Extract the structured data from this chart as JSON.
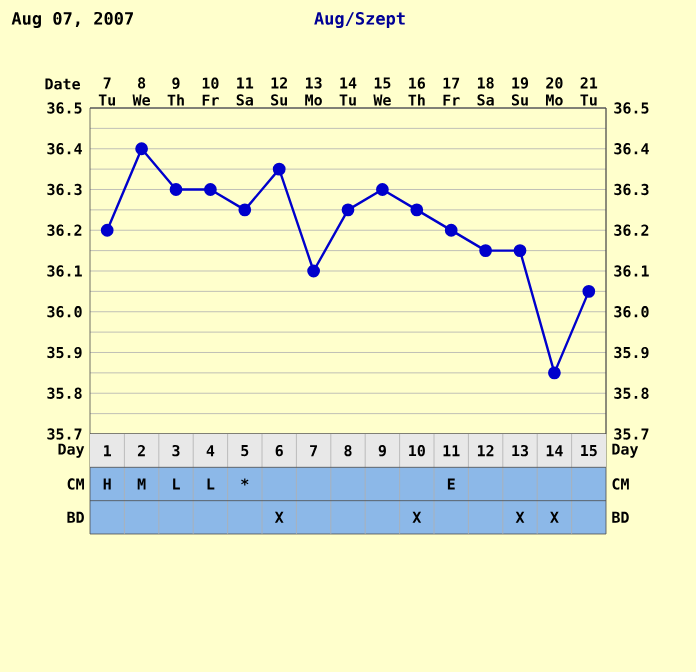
{
  "chart_data": [
    {
      "type": "line",
      "title": "Aug/Szept",
      "annotations": [
        "Aug 07, 2007"
      ],
      "categories": [
        "7 Tu",
        "8 We",
        "9 Th",
        "10 Fr",
        "11 Sa",
        "12 Su",
        "13 Mo",
        "14 Tu",
        "15 We",
        "16 Th",
        "17 Fr",
        "18 Sa",
        "19 Su",
        "20 Mo",
        "21 Tu"
      ],
      "xlabel": "Date",
      "values": [
        36.2,
        36.4,
        36.3,
        36.3,
        36.25,
        36.35,
        36.1,
        36.25,
        36.3,
        36.25,
        36.2,
        36.15,
        36.15,
        35.85,
        36.05
      ],
      "color": "#0000cc",
      "marker": "circle",
      "grid": true,
      "ylim": [
        35.7,
        36.5
      ],
      "yticks": [
        35.7,
        35.8,
        35.9,
        {
          "value": 36.0,
          "label": "36.0"
        },
        36.1,
        36.2,
        36.3,
        36.4,
        36.5
      ],
      "y2lim": [
        35.7,
        36.5
      ],
      "y2ticks": [
        35.7,
        35.8,
        35.9,
        {
          "value": 36.0,
          "label": "36.0"
        },
        36.1,
        36.2,
        36.3,
        36.4,
        36.5
      ]
    },
    {
      "type": "heatmap",
      "categories": [
        "1",
        "2",
        "3",
        "4",
        "5",
        "6",
        "7",
        "8",
        "9",
        "10",
        "11",
        "12",
        "13",
        "14",
        "15"
      ],
      "xlabel": "Day",
      "y_categories": [
        "CM",
        "BD"
      ],
      "y2_categories": [
        "CM",
        "BD"
      ],
      "cells": [
        [
          null,
          null,
          null,
          null,
          null,
          null,
          null,
          null,
          null,
          null,
          null,
          null,
          null,
          null,
          null
        ],
        [
          null,
          null,
          null,
          null,
          null,
          null,
          null,
          null,
          null,
          null,
          null,
          null,
          null,
          null,
          null
        ]
      ],
      "cell_labels": [
        [
          "H",
          "M",
          "L",
          "L",
          "*",
          null,
          null,
          null,
          null,
          null,
          "E",
          null,
          null,
          null,
          null
        ],
        [
          null,
          null,
          null,
          null,
          null,
          "X",
          null,
          null,
          null,
          "X",
          null,
          null,
          "X",
          "X",
          null
        ]
      ]
    }
  ]
}
